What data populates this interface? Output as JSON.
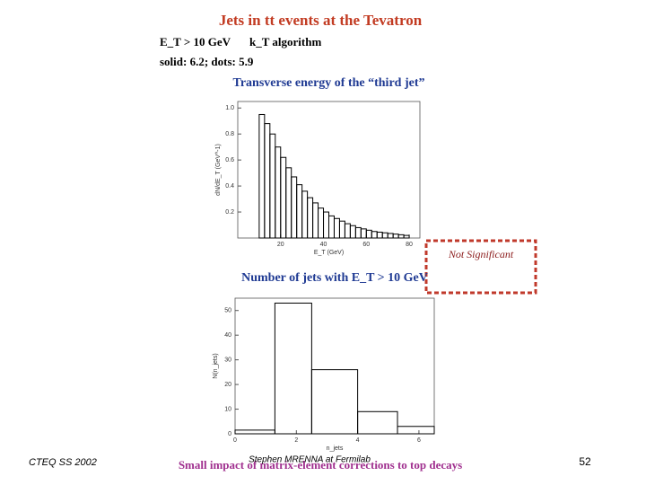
{
  "slide": {
    "title": "Jets in tt events at the Tevatron",
    "cuts": [
      "E_T > 10 GeV",
      "k_T algorithm"
    ],
    "note": "solid: 6.2; dots: 5.9",
    "stamp": "Not Significant",
    "footer": {
      "left": "CTEQ SS 2002",
      "center": "Stephen MRENNA at Fermilab",
      "caption": "Small impact of matrix-element corrections to top decays",
      "page": "52"
    }
  },
  "chart_data": [
    {
      "type": "histogram",
      "title": "Transverse energy of the “third jet”",
      "x_label": "E_T (GeV)",
      "y_label": "dN/dE_T (GeV^-1)",
      "color": "#000000",
      "bins": [
        10,
        12.5,
        15,
        17.5,
        20,
        22.5,
        25,
        27.5,
        30,
        32.5,
        35,
        37.5,
        40,
        42.5,
        45,
        47.5,
        50,
        52.5,
        55,
        57.5,
        60,
        62.5,
        65,
        67.5,
        70,
        72.5,
        75,
        77.5,
        80
      ],
      "values": [
        0.95,
        0.88,
        0.8,
        0.7,
        0.62,
        0.54,
        0.47,
        0.41,
        0.36,
        0.31,
        0.27,
        0.23,
        0.2,
        0.17,
        0.15,
        0.13,
        0.11,
        0.095,
        0.08,
        0.07,
        0.06,
        0.05,
        0.045,
        0.04,
        0.035,
        0.03,
        0.025,
        0.02
      ],
      "xlim": [
        0,
        85
      ],
      "ylim": [
        0,
        1.05
      ],
      "xticks": [
        20,
        40,
        60,
        80
      ],
      "yticks": [
        0.2,
        0.4,
        0.6,
        0.8,
        {
          "value": 1,
          "label": "1.0"
        }
      ]
    },
    {
      "type": "histogram",
      "title": "Number of jets with E_T > 10 GeV",
      "x_label": "n_jets",
      "y_label": "N(n_jets)",
      "color": "#000000",
      "bins": [
        0,
        1.3,
        2.5,
        4,
        5.3,
        6.5
      ],
      "values": [
        1.5,
        53,
        26,
        9,
        3
      ],
      "xlim": [
        0,
        6.5
      ],
      "ylim": [
        0,
        55
      ],
      "xticks": [
        0,
        2,
        4,
        6
      ],
      "yticks": [
        0,
        10,
        20,
        30,
        40,
        50
      ]
    }
  ]
}
